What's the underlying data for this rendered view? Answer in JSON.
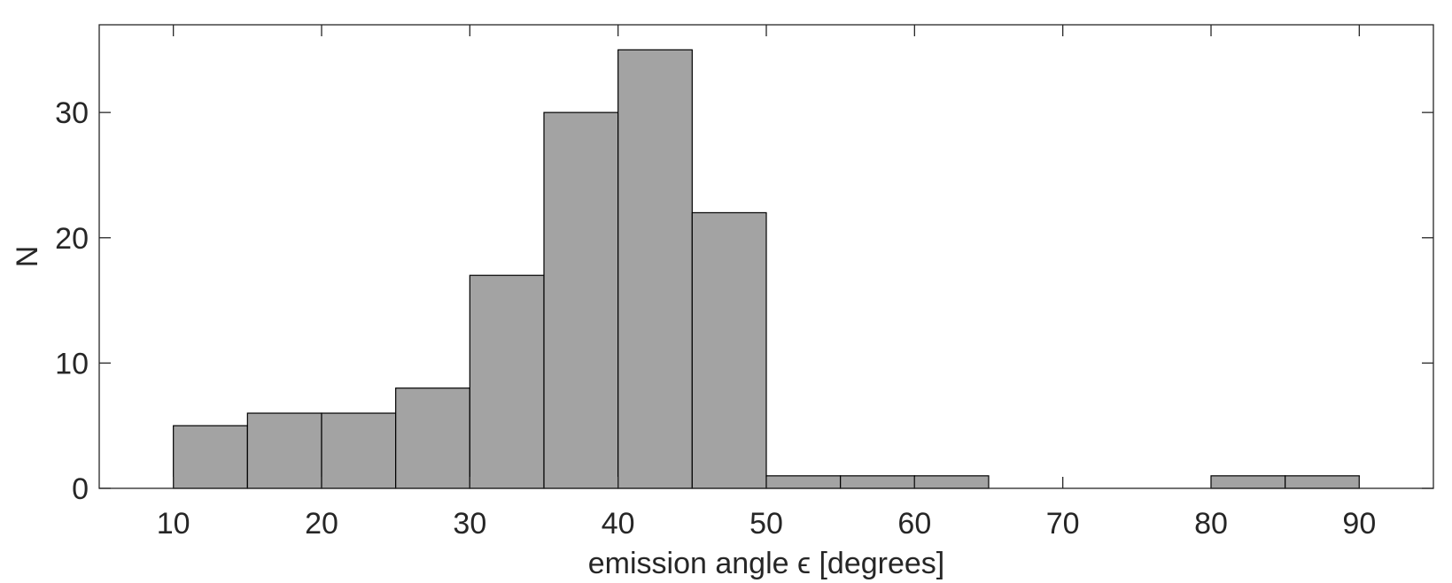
{
  "chart_data": {
    "type": "bar",
    "subtype": "histogram",
    "bin_edges": [
      10,
      15,
      20,
      25,
      30,
      35,
      40,
      45,
      50,
      55,
      60,
      65,
      70,
      75,
      80,
      85,
      90
    ],
    "counts": [
      5,
      6,
      6,
      8,
      17,
      30,
      35,
      22,
      1,
      1,
      1,
      0,
      0,
      0,
      1,
      1
    ],
    "xlabel": "emission angle ϵ [degrees]",
    "ylabel": "N",
    "xlim": [
      5,
      95
    ],
    "ylim": [
      0,
      37
    ],
    "xticks": [
      10,
      20,
      30,
      40,
      50,
      60,
      70,
      80,
      90
    ],
    "yticks": [
      0,
      10,
      20,
      30
    ],
    "grid": false,
    "bar_color": "#a3a3a3",
    "edge_color": "#000000"
  }
}
